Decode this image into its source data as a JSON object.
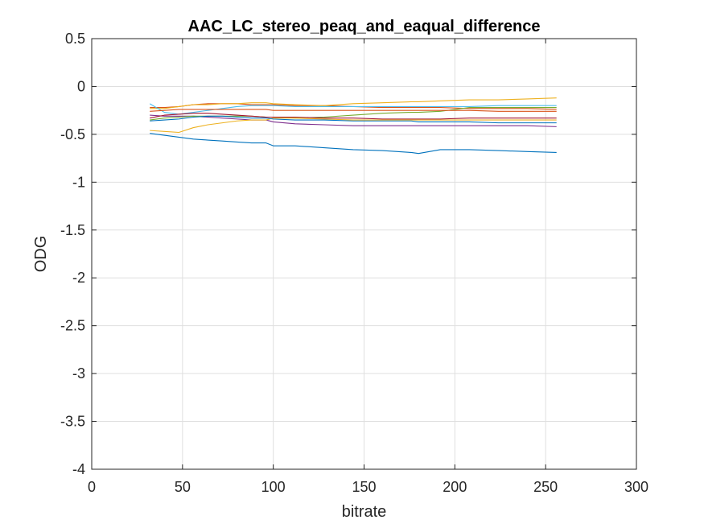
{
  "chart_data": {
    "type": "line",
    "title": "AAC_LC_stereo_peaq_and_eaqual_difference",
    "xlabel": "bitrate",
    "ylabel": "ODG",
    "xlim": [
      0,
      300
    ],
    "ylim": [
      -4,
      0.5
    ],
    "xticks": [
      0,
      50,
      100,
      150,
      200,
      250,
      300
    ],
    "xtick_labels": [
      "0",
      "50",
      "100",
      "150",
      "200",
      "250",
      "300"
    ],
    "yticks": [
      0.5,
      0,
      -0.5,
      -1,
      -1.5,
      -2,
      -2.5,
      -3,
      -3.5,
      -4
    ],
    "ytick_labels": [
      "0.5",
      "0",
      "-0.5",
      "-1",
      "-1.5",
      "-2",
      "-2.5",
      "-3",
      "-3.5",
      "-4"
    ],
    "grid": true,
    "legend": "none",
    "x": [
      32,
      40,
      48,
      56,
      64,
      72,
      80,
      88,
      96,
      100,
      112,
      128,
      144,
      160,
      176,
      180,
      192,
      208,
      224,
      240,
      256
    ],
    "series": [
      {
        "color": "#0072BD",
        "values": [
          -0.49,
          -0.51,
          -0.53,
          -0.55,
          -0.56,
          -0.57,
          -0.58,
          -0.59,
          -0.59,
          -0.62,
          -0.62,
          -0.64,
          -0.66,
          -0.67,
          -0.69,
          -0.7,
          -0.66,
          -0.66,
          -0.67,
          -0.68,
          -0.69
        ]
      },
      {
        "color": "#D95319",
        "values": [
          -0.22,
          -0.22,
          -0.21,
          -0.19,
          -0.18,
          -0.18,
          -0.18,
          -0.19,
          -0.19,
          -0.19,
          -0.2,
          -0.2,
          -0.21,
          -0.22,
          -0.22,
          -0.22,
          -0.22,
          -0.23,
          -0.23,
          -0.23,
          -0.24
        ]
      },
      {
        "color": "#EDB120",
        "values": [
          -0.23,
          -0.23,
          -0.21,
          -0.19,
          -0.19,
          -0.18,
          -0.18,
          -0.17,
          -0.17,
          -0.18,
          -0.19,
          -0.2,
          -0.18,
          -0.17,
          -0.16,
          -0.16,
          -0.15,
          -0.14,
          -0.14,
          -0.13,
          -0.12
        ]
      },
      {
        "color": "#7E2F8E",
        "values": [
          -0.3,
          -0.31,
          -0.31,
          -0.31,
          -0.32,
          -0.33,
          -0.34,
          -0.35,
          -0.35,
          -0.37,
          -0.39,
          -0.4,
          -0.41,
          -0.41,
          -0.41,
          -0.41,
          -0.41,
          -0.41,
          -0.41,
          -0.41,
          -0.42
        ]
      },
      {
        "color": "#77AC30",
        "values": [
          -0.35,
          -0.33,
          -0.32,
          -0.31,
          -0.31,
          -0.31,
          -0.31,
          -0.31,
          -0.32,
          -0.32,
          -0.33,
          -0.32,
          -0.3,
          -0.28,
          -0.27,
          -0.27,
          -0.26,
          -0.22,
          -0.22,
          -0.22,
          -0.22
        ]
      },
      {
        "color": "#4DBEEE",
        "values": [
          -0.18,
          -0.27,
          -0.29,
          -0.27,
          -0.25,
          -0.23,
          -0.21,
          -0.2,
          -0.2,
          -0.2,
          -0.21,
          -0.21,
          -0.21,
          -0.21,
          -0.21,
          -0.21,
          -0.21,
          -0.21,
          -0.2,
          -0.2,
          -0.2
        ]
      },
      {
        "color": "#A2142F",
        "values": [
          -0.33,
          -0.3,
          -0.29,
          -0.28,
          -0.28,
          -0.29,
          -0.3,
          -0.31,
          -0.32,
          -0.32,
          -0.32,
          -0.33,
          -0.33,
          -0.34,
          -0.34,
          -0.34,
          -0.34,
          -0.33,
          -0.33,
          -0.33,
          -0.33
        ]
      },
      {
        "color": "#EDB120",
        "values": [
          -0.46,
          -0.47,
          -0.48,
          -0.43,
          -0.4,
          -0.38,
          -0.36,
          -0.35,
          -0.35,
          -0.33,
          -0.33,
          -0.34,
          -0.35,
          -0.35,
          -0.35,
          -0.35,
          -0.35,
          -0.35,
          -0.35,
          -0.35,
          -0.35
        ]
      },
      {
        "color": "#0072BD",
        "values": [
          -0.36,
          -0.35,
          -0.34,
          -0.32,
          -0.31,
          -0.31,
          -0.32,
          -0.33,
          -0.33,
          -0.34,
          -0.35,
          -0.35,
          -0.36,
          -0.36,
          -0.36,
          -0.37,
          -0.37,
          -0.37,
          -0.38,
          -0.38,
          -0.38
        ]
      },
      {
        "color": "#D95319",
        "values": [
          -0.26,
          -0.25,
          -0.24,
          -0.24,
          -0.24,
          -0.24,
          -0.24,
          -0.24,
          -0.24,
          -0.25,
          -0.25,
          -0.25,
          -0.25,
          -0.25,
          -0.25,
          -0.25,
          -0.25,
          -0.25,
          -0.26,
          -0.26,
          -0.26
        ]
      }
    ]
  }
}
